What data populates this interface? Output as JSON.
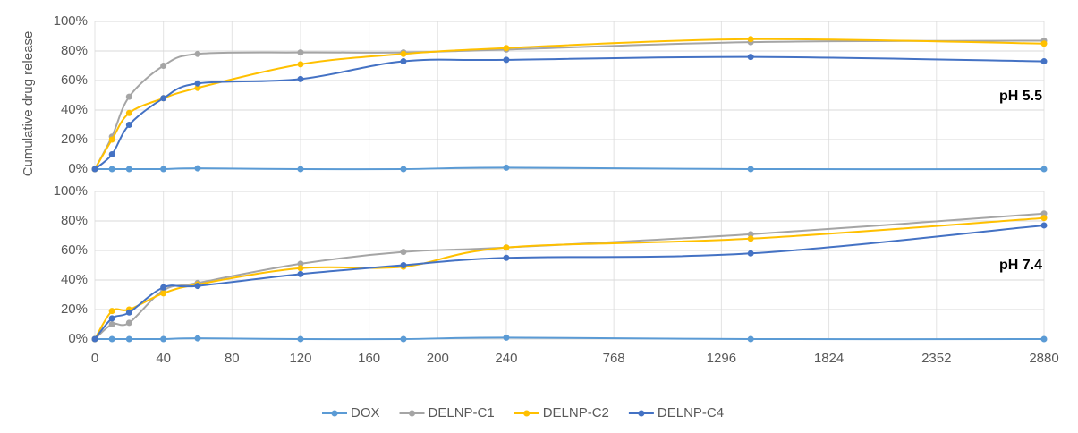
{
  "chart_data": [
    {
      "type": "line",
      "ylabel": "Cumulative drug release",
      "annotation": "pH 5.5",
      "x": [
        0,
        10,
        20,
        40,
        60,
        120,
        180,
        240,
        1440,
        2880
      ],
      "ylim": [
        0,
        100
      ],
      "yticks": [
        {
          "value": 0,
          "label": "0%"
        },
        {
          "value": 20,
          "label": "20%"
        },
        {
          "value": 40,
          "label": "40%"
        },
        {
          "value": 60,
          "label": "60%"
        },
        {
          "value": 80,
          "label": "80%"
        },
        {
          "value": 100,
          "label": "100%"
        }
      ],
      "series": [
        {
          "name": "DOX",
          "color": "#5b9bd5",
          "values": [
            0,
            0,
            0,
            0,
            0.5,
            0,
            0,
            1,
            0,
            0
          ]
        },
        {
          "name": "DELNP-C1",
          "color": "#a5a5a5",
          "values": [
            0,
            22,
            49,
            70,
            78,
            79,
            79,
            81,
            86,
            87
          ]
        },
        {
          "name": "DELNP-C2",
          "color": "#ffc000",
          "values": [
            0,
            20,
            38,
            48,
            55,
            71,
            78,
            82,
            88,
            85
          ]
        },
        {
          "name": "DELNP-C4",
          "color": "#4472c4",
          "values": [
            0,
            10,
            30,
            48,
            58,
            61,
            73,
            74,
            76,
            73
          ]
        }
      ]
    },
    {
      "type": "line",
      "annotation": "pH 7.4",
      "x": [
        0,
        10,
        20,
        40,
        60,
        120,
        180,
        240,
        1440,
        2880
      ],
      "xlim": [
        0,
        2880
      ],
      "xticks": [
        0,
        40,
        80,
        120,
        160,
        200,
        240,
        768,
        1296,
        1824,
        2352,
        2880
      ],
      "ylim": [
        0,
        100
      ],
      "yticks": [
        {
          "value": 0,
          "label": "0%"
        },
        {
          "value": 20,
          "label": "20%"
        },
        {
          "value": 40,
          "label": "40%"
        },
        {
          "value": 60,
          "label": "60%"
        },
        {
          "value": 80,
          "label": "80%"
        },
        {
          "value": 100,
          "label": "100%"
        }
      ],
      "series": [
        {
          "color": "#5b9bd5",
          "values": [
            0,
            0,
            0,
            0,
            0.5,
            0,
            0,
            1,
            0,
            0
          ]
        },
        {
          "color": "#a5a5a5",
          "values": [
            0,
            10,
            11,
            33,
            38,
            51,
            59,
            62,
            71,
            85
          ]
        },
        {
          "color": "#ffc000",
          "values": [
            0,
            19,
            20,
            31,
            37,
            48,
            49,
            62,
            68,
            82
          ]
        },
        {
          "color": "#4472c4",
          "values": [
            0,
            14,
            18,
            35,
            36,
            44,
            50,
            55,
            58,
            77
          ]
        }
      ]
    }
  ]
}
